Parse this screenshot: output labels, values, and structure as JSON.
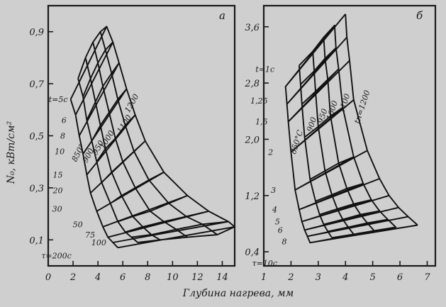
{
  "xlabel": "Глубина нагрева, мм",
  "ylabel": "N₀, кВт/см²",
  "chart_data": [
    {
      "type": "line",
      "panel_label": "а",
      "xlim": [
        0,
        15
      ],
      "ylim": [
        0,
        1.0
      ],
      "x_ticks": [
        "0",
        "2",
        "4",
        "6",
        "8",
        "10",
        "12",
        "14"
      ],
      "y_ticks": [
        "0,1",
        "0,3",
        "0,5",
        "0,7",
        "0,9"
      ],
      "time_labels": [
        "t=5c",
        "6",
        "8",
        "10",
        "15",
        "20",
        "30",
        "50",
        "75",
        "100",
        "τ=200c"
      ],
      "temperature_labels": [
        "850°",
        "900",
        "950",
        "1000",
        "1100",
        "1200"
      ],
      "curves": {
        "850°": [
          [
            1.8,
            0.64
          ],
          [
            2.2,
            0.58
          ],
          [
            2.5,
            0.5
          ],
          [
            2.8,
            0.43
          ],
          [
            3.1,
            0.35
          ],
          [
            3.4,
            0.28
          ],
          [
            3.9,
            0.21
          ],
          [
            4.4,
            0.15
          ],
          [
            4.8,
            0.11
          ],
          [
            5.2,
            0.09
          ],
          [
            5.6,
            0.07
          ]
        ],
        "900": [
          [
            2.4,
            0.72
          ],
          [
            2.8,
            0.65
          ],
          [
            3.1,
            0.56
          ],
          [
            3.5,
            0.48
          ],
          [
            3.9,
            0.4
          ],
          [
            4.3,
            0.32
          ],
          [
            5.0,
            0.24
          ],
          [
            5.6,
            0.17
          ],
          [
            6.2,
            0.13
          ],
          [
            6.7,
            0.11
          ],
          [
            7.2,
            0.09
          ]
        ],
        "950": [
          [
            3.0,
            0.8
          ],
          [
            3.4,
            0.72
          ],
          [
            3.8,
            0.63
          ],
          [
            4.2,
            0.54
          ],
          [
            4.6,
            0.45
          ],
          [
            5.1,
            0.36
          ],
          [
            5.9,
            0.27
          ],
          [
            6.8,
            0.19
          ],
          [
            7.6,
            0.15
          ],
          [
            8.3,
            0.12
          ],
          [
            9.0,
            0.1
          ]
        ],
        "1000": [
          [
            3.6,
            0.86
          ],
          [
            4.0,
            0.78
          ],
          [
            4.4,
            0.69
          ],
          [
            4.9,
            0.59
          ],
          [
            5.4,
            0.49
          ],
          [
            6.0,
            0.4
          ],
          [
            7.0,
            0.3
          ],
          [
            8.2,
            0.21
          ],
          [
            9.3,
            0.17
          ],
          [
            10.3,
            0.14
          ],
          [
            11.2,
            0.11
          ]
        ],
        "1100": [
          [
            4.2,
            0.9
          ],
          [
            4.6,
            0.83
          ],
          [
            5.1,
            0.74
          ],
          [
            5.6,
            0.64
          ],
          [
            6.2,
            0.54
          ],
          [
            6.9,
            0.44
          ],
          [
            8.1,
            0.33
          ],
          [
            9.7,
            0.24
          ],
          [
            11.1,
            0.19
          ],
          [
            12.4,
            0.16
          ],
          [
            13.6,
            0.12
          ]
        ],
        "1200": [
          [
            4.7,
            0.92
          ],
          [
            5.2,
            0.86
          ],
          [
            5.7,
            0.78
          ],
          [
            6.3,
            0.68
          ],
          [
            7.0,
            0.58
          ],
          [
            7.8,
            0.48
          ],
          [
            9.3,
            0.36
          ],
          [
            11.2,
            0.27
          ],
          [
            12.9,
            0.21
          ],
          [
            14.5,
            0.17
          ],
          [
            15.0,
            0.15
          ]
        ]
      }
    },
    {
      "type": "line",
      "panel_label": "б",
      "xlim": [
        1,
        7.3
      ],
      "ylim": [
        0.2,
        3.9
      ],
      "x_ticks": [
        "1",
        "2",
        "3",
        "4",
        "5",
        "6",
        "7"
      ],
      "y_ticks": [
        "0,4",
        "1,2",
        "2,0",
        "2,8",
        "3,6"
      ],
      "time_labels": [
        "t=1c",
        "1,25",
        "1,5",
        "2",
        "3",
        "4",
        "5",
        "6",
        "8",
        "τ=10c"
      ],
      "temperature_labels": [
        "850°C",
        "900",
        "950",
        "1000",
        "1100",
        "tп=1200"
      ],
      "curves": {
        "850°C": [
          [
            1.8,
            2.75
          ],
          [
            1.85,
            2.5
          ],
          [
            1.9,
            2.25
          ],
          [
            2.0,
            1.82
          ],
          [
            2.15,
            1.28
          ],
          [
            2.3,
            1.0
          ],
          [
            2.4,
            0.83
          ],
          [
            2.5,
            0.71
          ],
          [
            2.6,
            0.62
          ],
          [
            2.7,
            0.53
          ]
        ],
        "900": [
          [
            2.3,
            3.05
          ],
          [
            2.35,
            2.78
          ],
          [
            2.4,
            2.5
          ],
          [
            2.5,
            2.03
          ],
          [
            2.7,
            1.43
          ],
          [
            2.9,
            1.12
          ],
          [
            3.05,
            0.93
          ],
          [
            3.2,
            0.79
          ],
          [
            3.35,
            0.69
          ],
          [
            3.5,
            0.6
          ]
        ],
        "950": [
          [
            2.8,
            3.25
          ],
          [
            2.85,
            2.97
          ],
          [
            2.9,
            2.68
          ],
          [
            3.0,
            2.18
          ],
          [
            3.25,
            1.55
          ],
          [
            3.5,
            1.21
          ],
          [
            3.7,
            1.01
          ],
          [
            3.9,
            0.86
          ],
          [
            4.1,
            0.75
          ],
          [
            4.3,
            0.65
          ]
        ],
        "1000": [
          [
            3.2,
            3.45
          ],
          [
            3.25,
            3.15
          ],
          [
            3.35,
            2.85
          ],
          [
            3.45,
            2.33
          ],
          [
            3.75,
            1.66
          ],
          [
            4.05,
            1.3
          ],
          [
            4.3,
            1.08
          ],
          [
            4.55,
            0.93
          ],
          [
            4.8,
            0.81
          ],
          [
            5.05,
            0.7
          ]
        ],
        "1100": [
          [
            3.6,
            3.62
          ],
          [
            3.65,
            3.3
          ],
          [
            3.75,
            3.0
          ],
          [
            3.9,
            2.45
          ],
          [
            4.3,
            1.75
          ],
          [
            4.65,
            1.37
          ],
          [
            4.95,
            1.14
          ],
          [
            5.25,
            0.98
          ],
          [
            5.55,
            0.86
          ],
          [
            5.85,
            0.75
          ]
        ],
        "tп=1200": [
          [
            4.0,
            3.78
          ],
          [
            4.05,
            3.45
          ],
          [
            4.15,
            3.12
          ],
          [
            4.3,
            2.56
          ],
          [
            4.8,
            1.84
          ],
          [
            5.25,
            1.44
          ],
          [
            5.6,
            1.2
          ],
          [
            5.95,
            1.03
          ],
          [
            6.3,
            0.9
          ],
          [
            6.65,
            0.78
          ]
        ]
      }
    }
  ]
}
